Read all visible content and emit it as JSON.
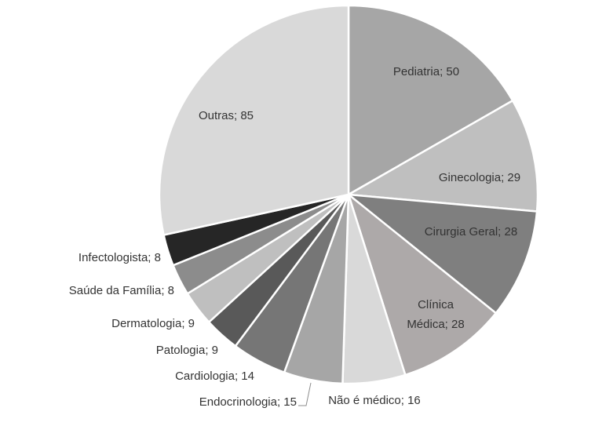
{
  "chart_data": {
    "type": "pie",
    "title": "",
    "slices": [
      {
        "label": "Pediatria",
        "value": 50,
        "color": "#a6a6a6"
      },
      {
        "label": "Ginecologia",
        "value": 29,
        "color": "#bfbfbf"
      },
      {
        "label": "Cirurgia Geral",
        "value": 28,
        "color": "#7f7f7f"
      },
      {
        "label": "Clínica Médica",
        "value": 28,
        "color": "#ada9a9"
      },
      {
        "label": "Não é médico",
        "value": 16,
        "color": "#d9d9d9"
      },
      {
        "label": "Endocrinologia",
        "value": 15,
        "color": "#a6a6a6"
      },
      {
        "label": "Cardiologia",
        "value": 14,
        "color": "#767676"
      },
      {
        "label": "Patologia",
        "value": 9,
        "color": "#595959"
      },
      {
        "label": "Dermatologia",
        "value": 9,
        "color": "#bfbfbf"
      },
      {
        "label": "Saúde da Família",
        "value": 8,
        "color": "#8c8c8c"
      },
      {
        "label": "Infectologista",
        "value": 8,
        "color": "#262626"
      },
      {
        "label": "Outras",
        "value": 85,
        "color": "#d9d9d9"
      }
    ],
    "data_labels": [
      {
        "line1": "Pediatria; 50",
        "line2": ""
      },
      {
        "line1": "Ginecologia; 29",
        "line2": ""
      },
      {
        "line1": "Cirurgia Geral; 28",
        "line2": ""
      },
      {
        "line1": "Clínica",
        "line2": "Médica; 28"
      },
      {
        "line1": "Não é médico; 16",
        "line2": ""
      },
      {
        "line1": "Endocrinologia; 15",
        "line2": ""
      },
      {
        "line1": "Cardiologia; 14",
        "line2": ""
      },
      {
        "line1": "Patologia; 9",
        "line2": ""
      },
      {
        "line1": "Dermatologia; 9",
        "line2": ""
      },
      {
        "line1": "Saúde da Família; 8",
        "line2": ""
      },
      {
        "line1": "Infectologista; 8",
        "line2": ""
      },
      {
        "line1": "Outras; 85",
        "line2": ""
      }
    ]
  }
}
